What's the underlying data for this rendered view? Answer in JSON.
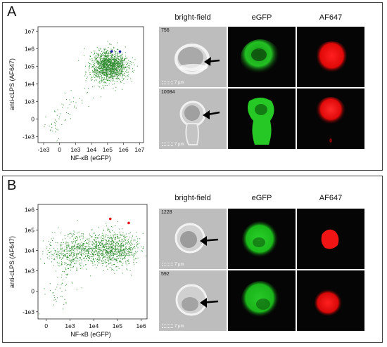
{
  "panels": [
    {
      "label": "A",
      "column_headers": [
        "bright-field",
        "eGFP",
        "AF647"
      ],
      "cells": [
        {
          "id": "756",
          "scale": "7 µm"
        },
        {
          "id": "10084",
          "scale": "7 µm"
        }
      ]
    },
    {
      "label": "B",
      "column_headers": [
        "bright-field",
        "eGFP",
        "AF647"
      ],
      "cells": [
        {
          "id": "1228",
          "scale": "7 µm"
        },
        {
          "id": "592",
          "scale": "7 µm"
        }
      ]
    }
  ],
  "chart_data": [
    {
      "type": "scatter",
      "xlabel": "NF-κB (eGFP)",
      "ylabel": "anti-cLPS (AF647)",
      "x_ticks": [
        "-1e3",
        "0",
        "1e3",
        "1e4",
        "1e5",
        "1e6",
        "1e7"
      ],
      "y_ticks": [
        "1e7",
        "1e6",
        "1e5",
        "1e4",
        "1e3",
        "0",
        "-1e3"
      ],
      "point_color": "#2e8b2e",
      "highlight_color": "#1a1aa8",
      "clusters": [
        {
          "x_center": 120000,
          "y_center": 110000,
          "count": 1500
        }
      ],
      "highlighted_points": [
        {
          "x": 180000,
          "y": 700000
        },
        {
          "x": 600000,
          "y": 680000
        }
      ]
    },
    {
      "type": "scatter",
      "xlabel": "NF-κB (eGFP)",
      "ylabel": "anti-cLPS (AF647)",
      "x_ticks": [
        "0",
        "1e3",
        "1e4",
        "1e5",
        "1e6"
      ],
      "y_ticks": [
        "1e6",
        "1e5",
        "1e4",
        "1e3",
        "0",
        "-1e3"
      ],
      "point_color": "#2e8b2e",
      "highlight_color": "#e01010",
      "clusters": [
        {
          "x_center": 1500,
          "y_center": 10000,
          "count": 500
        },
        {
          "x_center": 60000,
          "y_center": 12000,
          "count": 900
        }
      ],
      "highlighted_points": [
        {
          "x": 50000,
          "y": 350000
        },
        {
          "x": 300000,
          "y": 220000
        }
      ]
    }
  ]
}
